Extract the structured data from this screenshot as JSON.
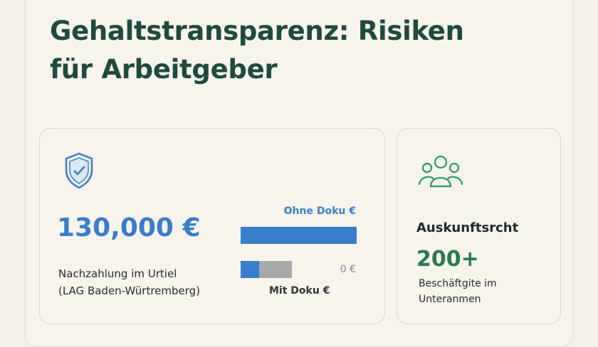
{
  "header": {
    "title_lines": [
      "Gehaltstransparenz: Risiken",
      "für Arbeitgeber"
    ]
  },
  "left_card": {
    "amount": "130,000 €",
    "caption_lines": [
      "Nachzahlung im Urtiel",
      "(LAG Baden-Würtremberg)"
    ],
    "bar_top_label": "Ohne Doku €",
    "bar_bottom_value": "0 €",
    "bar_bottom_label": "Mit Doku €"
  },
  "right_card": {
    "heading": "Auskunftsrcht",
    "figure": "200+",
    "caption_lines": [
      "Beschäftgite im",
      "Unteranmen"
    ]
  }
}
